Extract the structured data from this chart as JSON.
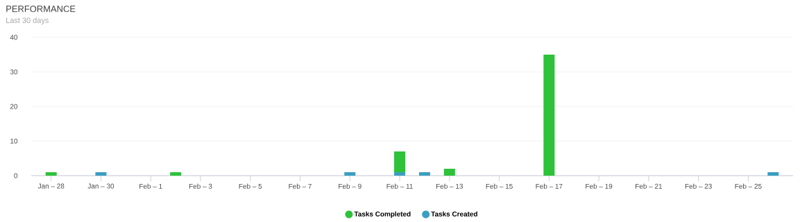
{
  "chart_data": {
    "type": "bar",
    "title": "PERFORMANCE",
    "subtitle": "Last 30 days",
    "categories": [
      "Jan – 28",
      null,
      "Jan – 30",
      null,
      "Feb – 1",
      null,
      "Feb – 3",
      null,
      "Feb – 5",
      null,
      "Feb – 7",
      null,
      "Feb – 9",
      null,
      "Feb – 11",
      null,
      "Feb – 13",
      null,
      "Feb – 15",
      null,
      "Feb – 17",
      null,
      "Feb – 19",
      null,
      "Feb – 21",
      null,
      "Feb – 23",
      null,
      "Feb – 25",
      null
    ],
    "stacked": true,
    "series": [
      {
        "name": "Tasks Created",
        "color": "#3a9fc0",
        "values": [
          0,
          0,
          1,
          0,
          0,
          0,
          0,
          0,
          0,
          0,
          0,
          0,
          1,
          0,
          1,
          1,
          0,
          0,
          0,
          0,
          0,
          0,
          0,
          0,
          0,
          0,
          0,
          0,
          0,
          1
        ]
      },
      {
        "name": "Tasks Completed",
        "color": "#2dc23a",
        "values": [
          1,
          0,
          0,
          0,
          0,
          1,
          0,
          0,
          0,
          0,
          0,
          0,
          0,
          0,
          6,
          0,
          2,
          0,
          0,
          0,
          35,
          0,
          0,
          0,
          0,
          0,
          0,
          0,
          0,
          0
        ]
      }
    ],
    "ylim": [
      0,
      40
    ],
    "yticks": [
      0,
      10,
      20,
      30,
      40
    ],
    "grid": "y",
    "legend": "bottom",
    "marker": "circle"
  }
}
